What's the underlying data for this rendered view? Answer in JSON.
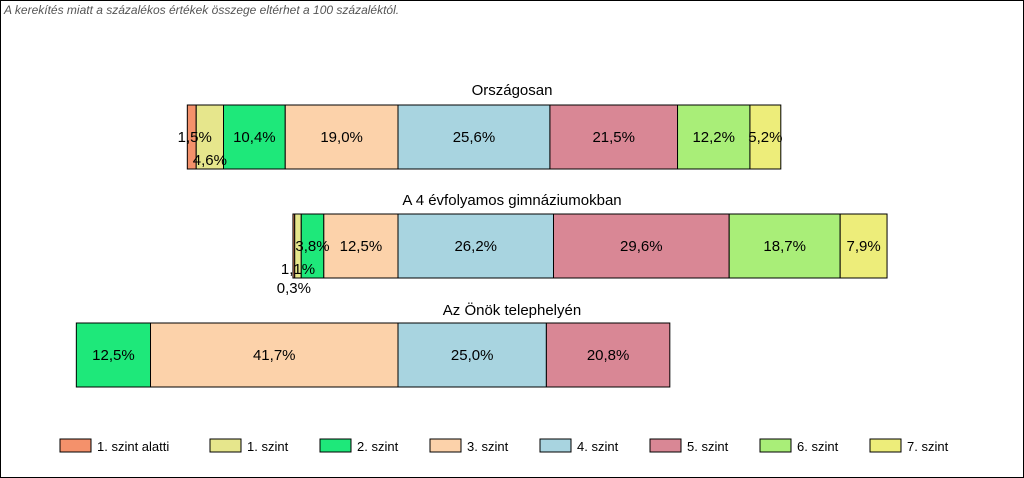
{
  "note": "A kerekítés miatt a  százalékos értékek összege eltérhet a 100 százaléktól.",
  "chart_data": {
    "type": "bar",
    "orientation": "horizontal",
    "stacked": true,
    "centered_on_boundary": "3. szint / 4. szint",
    "series": [
      {
        "name": "1. szint alatti",
        "color": "#f4916b"
      },
      {
        "name": "1. szint",
        "color": "#e6e68c"
      },
      {
        "name": "2. szint",
        "color": "#1ee87a"
      },
      {
        "name": "3. szint",
        "color": "#fcd2aa"
      },
      {
        "name": "4. szint",
        "color": "#a8d4e0"
      },
      {
        "name": "5. szint",
        "color": "#d98795"
      },
      {
        "name": "6. szint",
        "color": "#a9ee78"
      },
      {
        "name": "7. szint",
        "color": "#eded7a"
      }
    ],
    "groups": [
      {
        "title": "Országosan",
        "values": [
          1.5,
          4.6,
          10.4,
          19.0,
          25.6,
          21.5,
          12.2,
          5.2
        ],
        "labels": [
          "1,5%",
          "4,6%",
          "10,4%",
          "19,0%",
          "25,6%",
          "21,5%",
          "12,2%",
          "5,2%"
        ]
      },
      {
        "title": "A 4 évfolyamos gimnáziumokban",
        "values": [
          0.3,
          1.1,
          3.8,
          12.5,
          26.2,
          29.6,
          18.7,
          7.9
        ],
        "labels": [
          "0,3%",
          "1,1%",
          "3,8%",
          "12,5%",
          "26,2%",
          "29,6%",
          "18,7%",
          "7,9%"
        ]
      },
      {
        "title": "Az Önök telephelyén",
        "values": [
          0,
          0,
          12.5,
          41.7,
          25.0,
          20.8,
          0,
          0
        ],
        "labels": [
          "",
          "",
          "12,5%",
          "41,7%",
          "25,0%",
          "20,8%",
          "",
          ""
        ]
      }
    ],
    "legend_position": "bottom"
  }
}
